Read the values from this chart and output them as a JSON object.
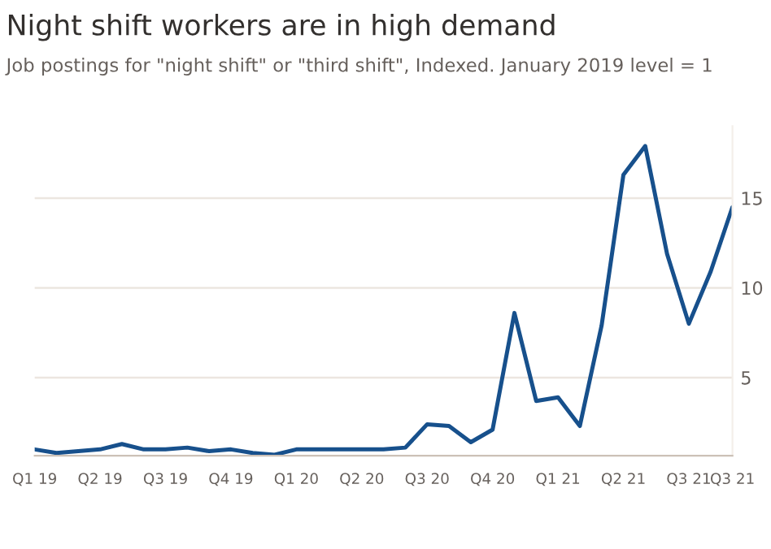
{
  "chart_data": {
    "type": "line",
    "title": "Night shift workers are in high demand",
    "subtitle": "Job postings for \"night shift\" or \"third shift\", Indexed. January 2019 level = 1",
    "categories": [
      "Q1 19",
      null,
      null,
      "Q2 19",
      null,
      null,
      "Q3 19",
      null,
      null,
      "Q4 19",
      null,
      null,
      "Q1 20",
      null,
      null,
      "Q2 20",
      null,
      null,
      "Q3 20",
      null,
      null,
      "Q4 20",
      null,
      null,
      "Q1 21",
      null,
      null,
      "Q2 21",
      null,
      null,
      "Q3 21",
      null,
      "Q3 21"
    ],
    "series": [
      {
        "color": "#17508c",
        "values": [
          1.0,
          0.8,
          0.9,
          1.0,
          1.3,
          1.0,
          1.0,
          1.1,
          0.9,
          1.0,
          0.8,
          0.7,
          1.0,
          1.0,
          1.0,
          1.0,
          1.0,
          1.1,
          2.4,
          2.3,
          1.4,
          2.1,
          8.6,
          3.7,
          3.9,
          2.3,
          7.9,
          16.3,
          17.9,
          11.9,
          8.0,
          10.9,
          14.5
        ]
      }
    ],
    "ylim": [
      0.65,
      19
    ],
    "yticks": [
      5,
      10,
      15
    ],
    "grid": "y",
    "legend": false,
    "line_style": "solid",
    "marker": "none"
  }
}
